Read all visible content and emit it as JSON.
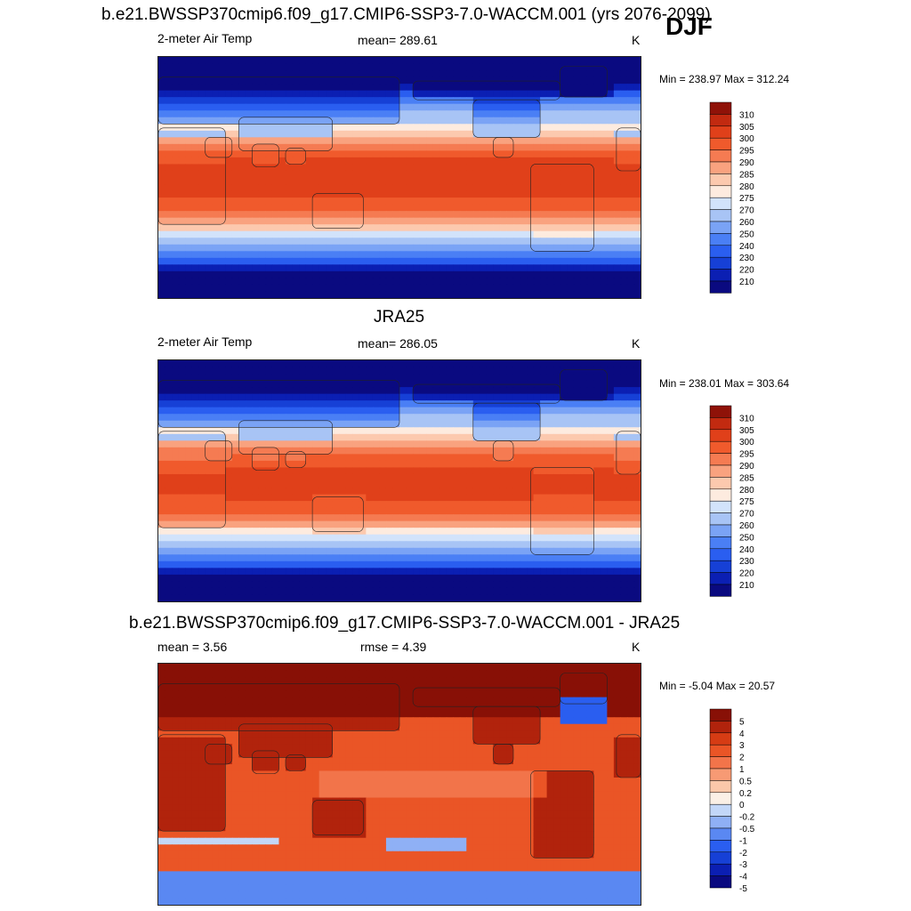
{
  "colors": {
    "temp": [
      "#0a0a80",
      "#0b1fb3",
      "#1640d6",
      "#2a5ef0",
      "#4a7ff5",
      "#7aa3f5",
      "#a8c4f5",
      "#d2e3fb",
      "#fdebdf",
      "#fcc9ae",
      "#f9a27f",
      "#f57b52",
      "#f05a2c",
      "#e0401a",
      "#c22a10",
      "#8f1208"
    ],
    "diff": [
      "#0a0a80",
      "#0b1fb3",
      "#1640d6",
      "#2a5ef0",
      "#5a88f2",
      "#8fb0f5",
      "#c3d7f8",
      "#fbf0e6",
      "#fbc8aa",
      "#f79a74",
      "#f2744a",
      "#ea5526",
      "#d63c14",
      "#b1230c",
      "#881006"
    ]
  },
  "header": {
    "title": "b.e21.BWSSP370cmip6.f09_g17.CMIP6-SSP3-7.0-WACCM.001 (yrs 2076-2099)",
    "season": "DJF"
  },
  "chart_data": [
    {
      "type": "heatmap",
      "title": "b.e21.BWSSP370cmip6.f09_g17.CMIP6-SSP3-7.0-WACCM.001 (yrs 2076-2099)",
      "variable": "2-meter Air Temp",
      "stat_text": "mean= 289.61",
      "mean": 289.61,
      "units": "K",
      "minmax_text": "Min = 238.97 Max = 312.24",
      "min": 238.97,
      "max": 312.24,
      "colorbar_levels": [
        "310",
        "305",
        "300",
        "295",
        "290",
        "285",
        "280",
        "275",
        "270",
        "260",
        "250",
        "240",
        "230",
        "220",
        "210"
      ],
      "palette": "temp",
      "warmth": 1.6
    },
    {
      "type": "heatmap",
      "title": "JRA25",
      "variable": "2-meter Air Temp",
      "stat_text": "mean= 286.05",
      "mean": 286.05,
      "units": "K",
      "minmax_text": "Min = 238.01 Max = 303.64",
      "min": 238.01,
      "max": 303.64,
      "colorbar_levels": [
        "310",
        "305",
        "300",
        "295",
        "290",
        "285",
        "280",
        "275",
        "270",
        "260",
        "250",
        "240",
        "230",
        "220",
        "210"
      ],
      "palette": "temp",
      "warmth": 0
    },
    {
      "type": "heatmap",
      "title": "b.e21.BWSSP370cmip6.f09_g17.CMIP6-SSP3-7.0-WACCM.001 - JRA25",
      "variable": "",
      "stat_text": "mean =   3.56",
      "mean": 3.56,
      "stat2_text": "rmse =   4.39",
      "rmse": 4.39,
      "units": "K",
      "minmax_text": "Min =  -5.04 Max =  20.57",
      "min": -5.04,
      "max": 20.57,
      "colorbar_levels": [
        "5",
        "4",
        "3",
        "2",
        "1",
        "0.5",
        "0.2",
        "0",
        "-0.2",
        "-0.5",
        "-1",
        "-2",
        "-3",
        "-4",
        "-5"
      ],
      "palette": "diff",
      "warmth": 0
    }
  ]
}
